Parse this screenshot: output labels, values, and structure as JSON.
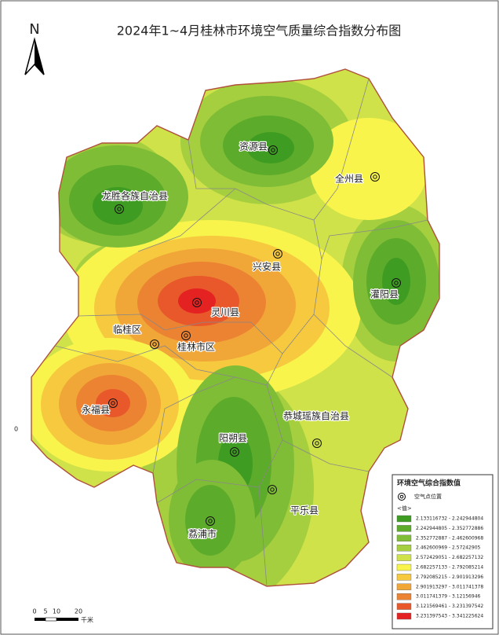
{
  "title": "2024年1~4月桂林市环境空气质量综合指数分布图",
  "north": "N",
  "edge_label": "0",
  "places": [
    {
      "name": "资源县"
    },
    {
      "name": "全州县"
    },
    {
      "name": "龙胜各族自治县"
    },
    {
      "name": "兴安县"
    },
    {
      "name": "灌阳县"
    },
    {
      "name": "灵川县"
    },
    {
      "name": "临桂区"
    },
    {
      "name": "桂林市区"
    },
    {
      "name": "永福县"
    },
    {
      "name": "恭城瑶族自治县"
    },
    {
      "name": "阳朔县"
    },
    {
      "name": "平乐县"
    },
    {
      "name": "荔浦市"
    }
  ],
  "legend": {
    "title": "环境空气综合指数值",
    "site": "空气点位置",
    "value_header": "<值>",
    "classes": [
      {
        "range": "2.133116732 - 2.242944804",
        "color": "#3f9c22"
      },
      {
        "range": "2.242944805 - 2.352772886",
        "color": "#5dab2b"
      },
      {
        "range": "2.352772887 - 2.462600968",
        "color": "#80bd36"
      },
      {
        "range": "2.462600969 - 2.57242905",
        "color": "#a6cf3f"
      },
      {
        "range": "2.572429051 - 2.682257132",
        "color": "#cfe24a"
      },
      {
        "range": "2.682257133 - 2.792085214",
        "color": "#f8f44c"
      },
      {
        "range": "2.792085215 - 2.901913296",
        "color": "#f6c93f"
      },
      {
        "range": "2.901913297 - 3.011741378",
        "color": "#f1a638"
      },
      {
        "range": "3.011741379 - 3.12156946",
        "color": "#ec8332"
      },
      {
        "range": "3.121569461 - 3.231397542",
        "color": "#e8582b"
      },
      {
        "range": "3.231397543 - 3.341225624",
        "color": "#e52222"
      }
    ]
  },
  "scale_bar": {
    "ticks": [
      "0",
      "5",
      "10",
      "20"
    ],
    "unit": "千米"
  }
}
